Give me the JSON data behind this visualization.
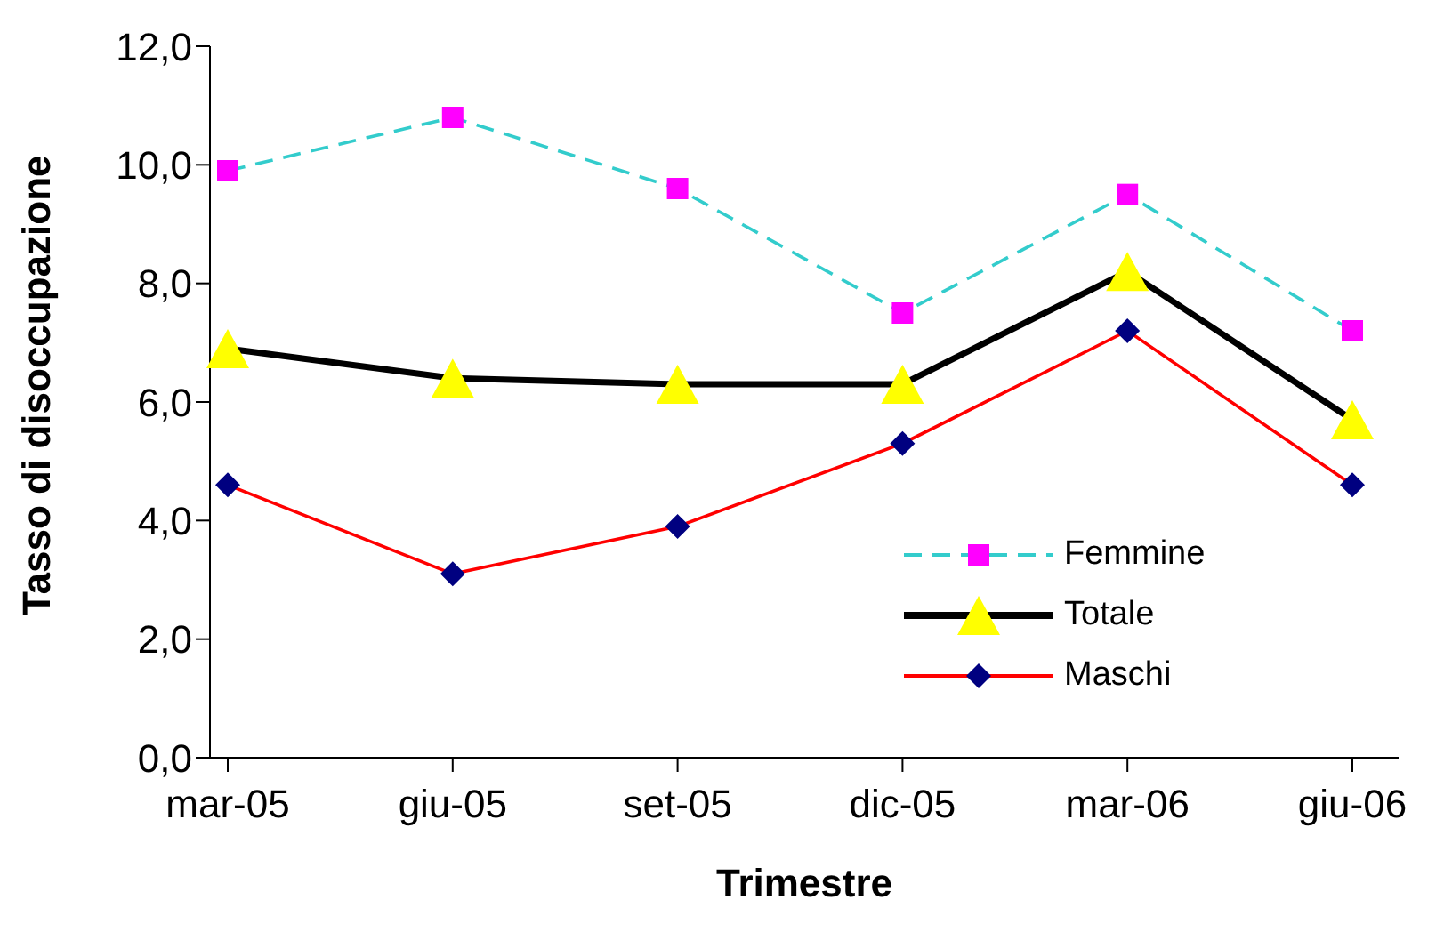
{
  "chart_data": {
    "type": "line",
    "xlabel": "Trimestre",
    "ylabel": "Tasso di disoccupazione",
    "categories": [
      "mar-05",
      "giu-05",
      "set-05",
      "dic-05",
      "mar-06",
      "giu-06"
    ],
    "series": [
      {
        "name": "Femmine",
        "color": "#33cccc",
        "marker": "square",
        "colors": [
          "#ff00ff",
          "#ff00ff",
          "#ff00ff",
          "#ff00ff",
          "#ff00ff",
          "#ff00ff"
        ],
        "line_style": "dashed",
        "values": [
          9.9,
          10.8,
          9.6,
          7.5,
          9.5,
          7.2
        ]
      },
      {
        "name": "Totale",
        "color": "#000000",
        "marker": "triangle",
        "colors": [
          "#ffff00",
          "#ffff00",
          "#ffff00",
          "#ffff00",
          "#ffff00",
          "#ffff00"
        ],
        "line_style": "solid",
        "values": [
          6.9,
          6.4,
          6.3,
          6.3,
          8.2,
          5.7
        ]
      },
      {
        "name": "Maschi",
        "color": "#ff0000",
        "marker": "diamond",
        "colors": [
          "#000080",
          "#000080",
          "#000080",
          "#000080",
          "#000080",
          "#000080"
        ],
        "line_style": "solid",
        "values": [
          4.6,
          3.1,
          3.9,
          5.3,
          7.2,
          4.6
        ]
      }
    ],
    "ylim": [
      0,
      12
    ],
    "yticks": [
      {
        "value": 0,
        "label": "0,0"
      },
      {
        "value": 2,
        "label": "2,0"
      },
      {
        "value": 4,
        "label": "4,0"
      },
      {
        "value": 6,
        "label": "6,0"
      },
      {
        "value": 8,
        "label": "8,0"
      },
      {
        "value": 10,
        "label": "10,0"
      },
      {
        "value": 12,
        "label": "12,0"
      }
    ],
    "grid": false,
    "legend": "bottom right"
  }
}
